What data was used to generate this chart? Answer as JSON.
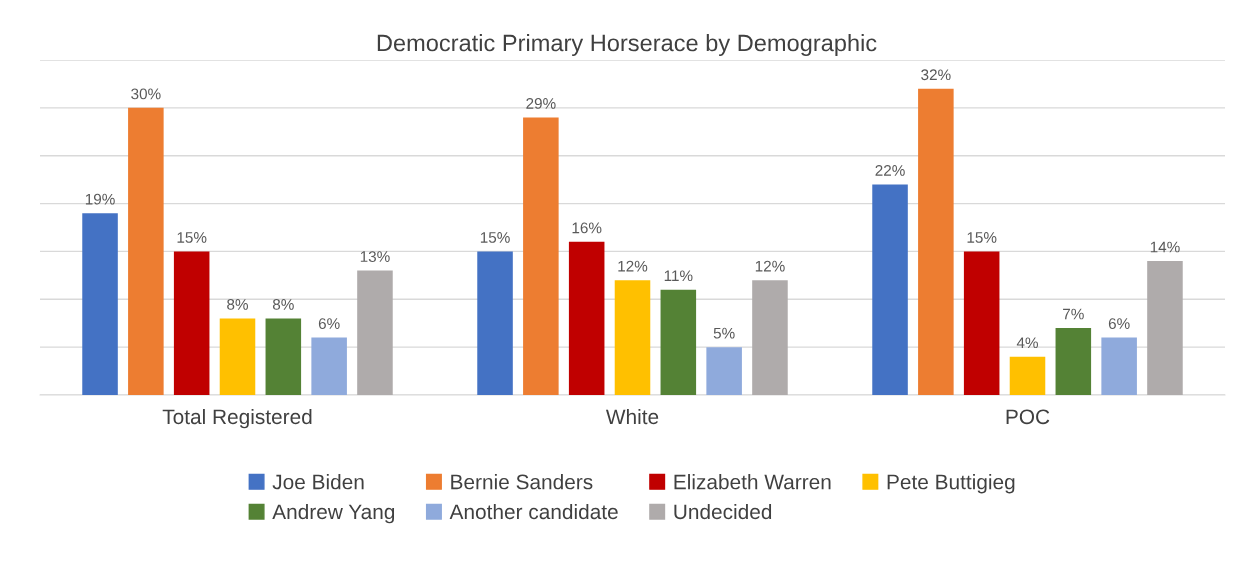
{
  "chart_data": {
    "type": "bar",
    "title": "Democratic Primary Horserace by Demographic",
    "categories": [
      "Total Registered",
      "White",
      "POC"
    ],
    "series": [
      {
        "name": "Joe Biden",
        "color": "#4472c4",
        "values": [
          19,
          15,
          22
        ],
        "value_labels": [
          "19%",
          "15%",
          "22%"
        ]
      },
      {
        "name": "Bernie Sanders",
        "color": "#ed7d31",
        "values": [
          30,
          29,
          32
        ],
        "value_labels": [
          "30%",
          "29%",
          "32%"
        ]
      },
      {
        "name": "Elizabeth Warren",
        "color": "#c00000",
        "values": [
          15,
          16,
          15
        ],
        "value_labels": [
          "15%",
          "16%",
          "15%"
        ]
      },
      {
        "name": "Pete Buttigieg",
        "color": "#ffc000",
        "values": [
          8,
          12,
          4
        ],
        "value_labels": [
          "8%",
          "12%",
          "4%"
        ]
      },
      {
        "name": "Andrew Yang",
        "color": "#548235",
        "values": [
          8,
          11,
          7
        ],
        "value_labels": [
          "8%",
          "11%",
          "7%"
        ]
      },
      {
        "name": "Another candidate",
        "color": "#8faadc",
        "values": [
          6,
          5,
          6
        ],
        "value_labels": [
          "6%",
          "5%",
          "6%"
        ]
      },
      {
        "name": "Undecided",
        "color": "#afabab",
        "values": [
          13,
          12,
          14
        ],
        "value_labels": [
          "13%",
          "12%",
          "14%"
        ]
      }
    ],
    "ylim": [
      0,
      35
    ],
    "yticks": [
      {
        "value": 0,
        "label": null
      },
      {
        "value": 5,
        "label": null
      },
      {
        "value": 10,
        "label": null
      },
      {
        "value": 15,
        "label": null
      },
      {
        "value": 20,
        "label": null
      },
      {
        "value": 25,
        "label": null
      },
      {
        "value": 30,
        "label": null
      },
      {
        "value": 35,
        "label": null
      }
    ],
    "tick_labels": "x",
    "grid": "y",
    "legend": "bottom"
  }
}
